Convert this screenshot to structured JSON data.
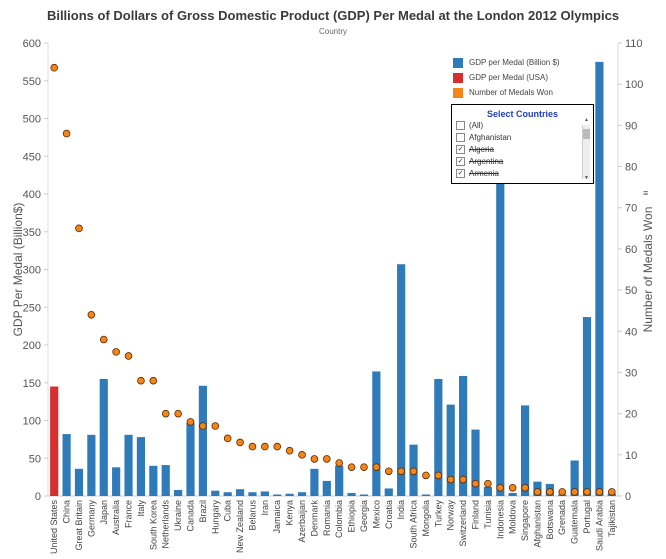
{
  "title": "Billions of Dollars of Gross Domestic Product (GDP) Per Medal at the London 2012 Olympics",
  "subtitle": "Country",
  "legend": [
    {
      "label": "GDP per Medal (Billion $)",
      "color": "#2f7ab9"
    },
    {
      "label": "GDP per Medal (USA)",
      "color": "#d62f2f"
    },
    {
      "label": "Number of Medals Won",
      "color": "#f58518"
    }
  ],
  "filter": {
    "title": "Select Countries",
    "items": [
      {
        "label": "(All)",
        "checked": false,
        "struck": false
      },
      {
        "label": "Afghanistan",
        "checked": false,
        "struck": false
      },
      {
        "label": "Algeria",
        "checked": true,
        "struck": true
      },
      {
        "label": "Argentina",
        "checked": true,
        "struck": true
      },
      {
        "label": "Armenia",
        "checked": true,
        "struck": true
      }
    ]
  },
  "chart_data": {
    "type": "bar",
    "xlabel": "",
    "ylabel": "GDP Per Medal (Billion$)",
    "y2label": "Number of Medals Won",
    "ylim": [
      0,
      600
    ],
    "y2lim": [
      0,
      110
    ],
    "yticks": [
      0,
      50,
      100,
      150,
      200,
      250,
      300,
      350,
      400,
      450,
      500,
      550,
      600
    ],
    "y2ticks": [
      0,
      10,
      20,
      30,
      40,
      50,
      60,
      70,
      80,
      90,
      100,
      110
    ],
    "categories": [
      "United States",
      "China",
      "Great Britain",
      "Germany",
      "Japan",
      "Australia",
      "France",
      "Italy",
      "South Korea",
      "Netherlands",
      "Ukraine",
      "Canada",
      "Brazil",
      "Hungary",
      "Cuba",
      "New Zealand",
      "Belarus",
      "Iran",
      "Jamaica",
      "Kenya",
      "Azerbaijan",
      "Denmark",
      "Romania",
      "Colombia",
      "Ethiopia",
      "Georgia",
      "Mexico",
      "Croatia",
      "India",
      "South Africa",
      "Mongolia",
      "Turkey",
      "Norway",
      "Switzerland",
      "Finland",
      "Tunisia",
      "Indonesia",
      "Moldova",
      "Singapore",
      "Afghanistan",
      "Botswana",
      "Grenada",
      "Guatemala",
      "Portugal",
      "Saudi Arabia",
      "Tajikistan"
    ],
    "series": [
      {
        "name": "GDP per Medal (Billion $)",
        "kind": "bar",
        "values": [
          145,
          82,
          36,
          81,
          155,
          38,
          81,
          78,
          40,
          41,
          8,
          97,
          146,
          7,
          5,
          9,
          5,
          6,
          2,
          3,
          5,
          36,
          20,
          40,
          4,
          2,
          165,
          10,
          307,
          68,
          2,
          155,
          121,
          159,
          88,
          12,
          450,
          4,
          120,
          19,
          16,
          2,
          47,
          237,
          575,
          3
        ]
      },
      {
        "name": "Number of Medals Won",
        "kind": "dot",
        "values": [
          104,
          88,
          65,
          44,
          38,
          35,
          34,
          28,
          28,
          20,
          20,
          18,
          17,
          17,
          14,
          13,
          12,
          12,
          12,
          11,
          10,
          9,
          9,
          8,
          7,
          7,
          7,
          6,
          6,
          6,
          5,
          5,
          4,
          4,
          3,
          3,
          2,
          2,
          2,
          1,
          1,
          1,
          1,
          1,
          1,
          1
        ]
      }
    ],
    "highlight_color": "#d62f2f"
  }
}
